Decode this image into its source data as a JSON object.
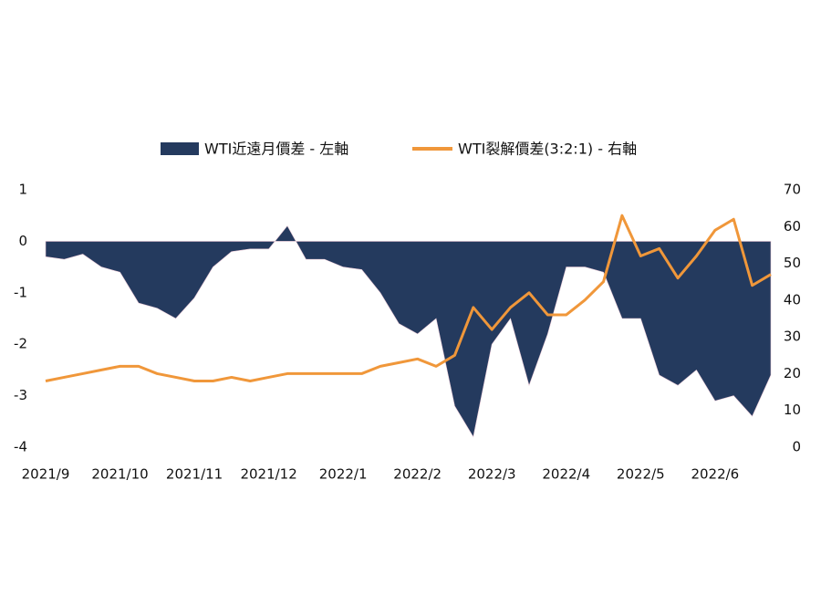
{
  "chart_data": {
    "type": "area_line",
    "categories": [
      "2021/9",
      null,
      null,
      null,
      "2021/10",
      null,
      null,
      null,
      "2021/11",
      null,
      null,
      null,
      "2021/12",
      null,
      null,
      null,
      "2022/1",
      null,
      null,
      null,
      "2022/2",
      null,
      null,
      null,
      "2022/3",
      null,
      null,
      null,
      "2022/4",
      null,
      null,
      null,
      "2022/5",
      null,
      null,
      null,
      "2022/6",
      null,
      null,
      null
    ],
    "series": [
      {
        "name": "WTI近遠月價差 - 左軸",
        "color": "#243a5e",
        "type": "area",
        "axis": "y",
        "values": [
          -0.3,
          -0.35,
          -0.25,
          -0.5,
          -0.6,
          -1.2,
          -1.3,
          -1.5,
          -1.1,
          -0.5,
          -0.2,
          -0.15,
          -0.15,
          0.3,
          -0.35,
          -0.35,
          -0.5,
          -0.55,
          -1.0,
          -1.6,
          -1.8,
          -1.5,
          -3.2,
          -3.8,
          -2.0,
          -1.5,
          -2.8,
          -1.8,
          -0.5,
          -0.5,
          -0.6,
          -1.5,
          -1.5,
          -2.6,
          -2.8,
          -2.5,
          -3.1,
          -3.0,
          -3.4,
          -2.6
        ]
      },
      {
        "name": "WTI裂解價差(3:2:1) - 右軸",
        "color": "#f0973a",
        "type": "line",
        "axis": "y2",
        "values": [
          18,
          19,
          20,
          21,
          22,
          22,
          20,
          19,
          18,
          18,
          19,
          18,
          19,
          20,
          20,
          20,
          20,
          20,
          22,
          23,
          24,
          22,
          25,
          38,
          32,
          38,
          42,
          36,
          36,
          40,
          45,
          63,
          52,
          54,
          46,
          52,
          59,
          62,
          44,
          47
        ]
      }
    ],
    "ylim": [
      -4,
      1
    ],
    "yticks": [
      -4,
      -3,
      -2,
      -1,
      0,
      1
    ],
    "y2lim": [
      0,
      70
    ],
    "y2ticks": [
      0,
      10,
      20,
      30,
      40,
      50,
      60,
      70
    ],
    "legend": "top"
  }
}
